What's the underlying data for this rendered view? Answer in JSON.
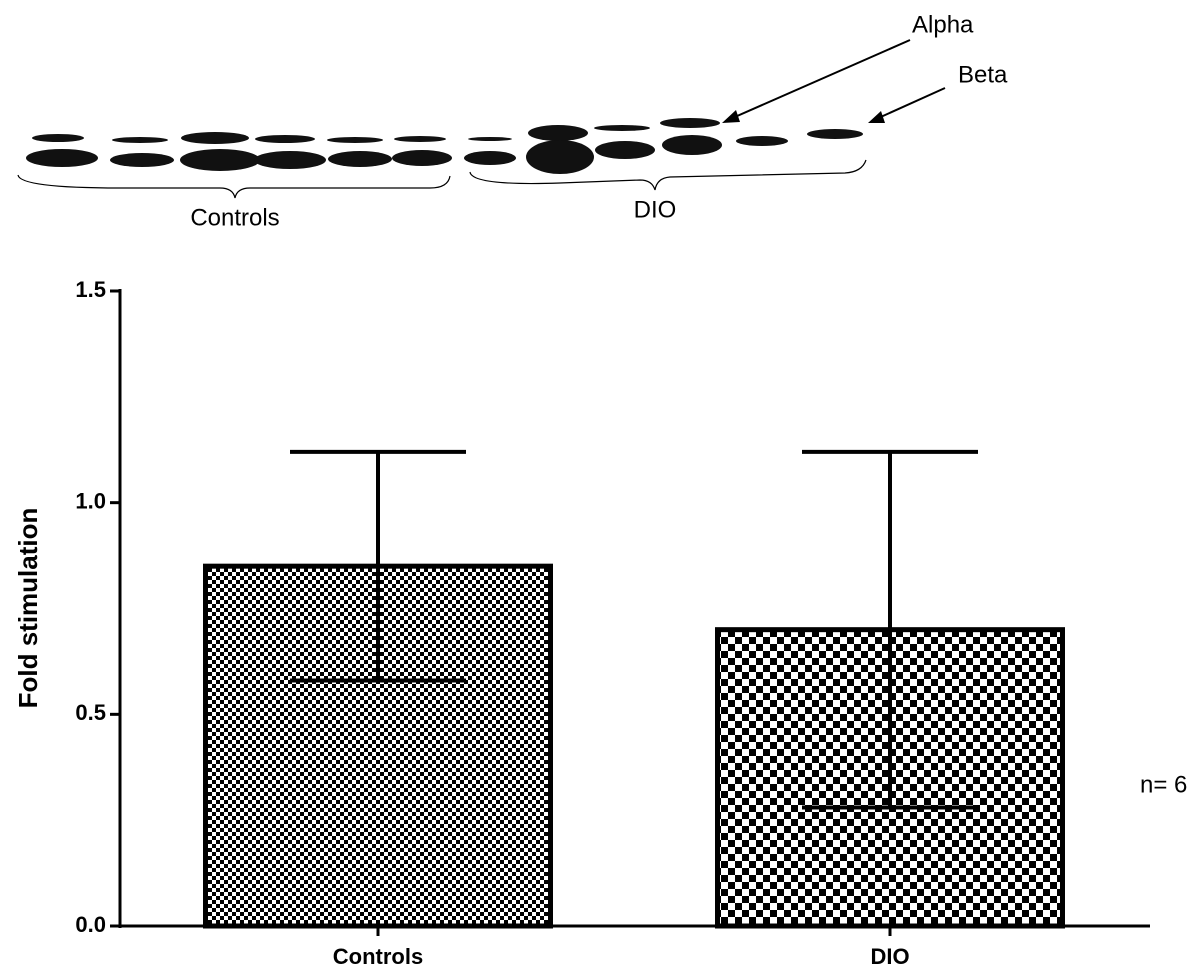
{
  "chart_data": {
    "type": "bar",
    "y_label": "Fold stimulation",
    "categories": [
      "Controls",
      "DIO"
    ],
    "values": [
      0.85,
      0.7
    ],
    "errors": [
      0.27,
      0.42
    ],
    "ylim": [
      0,
      1.5
    ],
    "yticks": [
      {
        "value": 0,
        "label": "0.0"
      },
      0.5,
      {
        "value": 1,
        "label": "1.0"
      },
      1.5
    ],
    "color": "#000000",
    "annotations": {
      "alpha": "Alpha",
      "beta": "Beta",
      "blot_controls": "Controls",
      "blot_dio": "DIO",
      "n": "n= 6"
    }
  }
}
